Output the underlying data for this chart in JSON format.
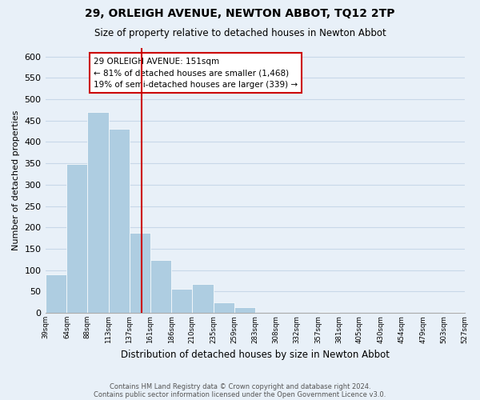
{
  "title1": "29, ORLEIGH AVENUE, NEWTON ABBOT, TQ12 2TP",
  "title2": "Size of property relative to detached houses in Newton Abbot",
  "xlabel": "Distribution of detached houses by size in Newton Abbot",
  "ylabel": "Number of detached properties",
  "bar_edges": [
    39,
    64,
    88,
    113,
    137,
    161,
    186,
    210,
    235,
    259,
    283,
    308,
    332,
    357,
    381,
    405,
    430,
    454,
    479,
    503,
    527
  ],
  "bar_heights": [
    90,
    349,
    471,
    430,
    187,
    124,
    57,
    67,
    25,
    13,
    0,
    0,
    0,
    2,
    0,
    0,
    0,
    0,
    0,
    2
  ],
  "bar_color": "#aecde1",
  "reference_line_x": 151,
  "reference_line_color": "#cc0000",
  "annotation_title": "29 ORLEIGH AVENUE: 151sqm",
  "annotation_line1": "← 81% of detached houses are smaller (1,468)",
  "annotation_line2": "19% of semi-detached houses are larger (339) →",
  "annotation_box_color": "#ffffff",
  "annotation_box_edge": "#cc0000",
  "ylim": [
    0,
    620
  ],
  "yticks": [
    0,
    50,
    100,
    150,
    200,
    250,
    300,
    350,
    400,
    450,
    500,
    550,
    600
  ],
  "grid_color": "#c8d8e8",
  "background_color": "#e8f0f8",
  "footer1": "Contains HM Land Registry data © Crown copyright and database right 2024.",
  "footer2": "Contains public sector information licensed under the Open Government Licence v3.0."
}
